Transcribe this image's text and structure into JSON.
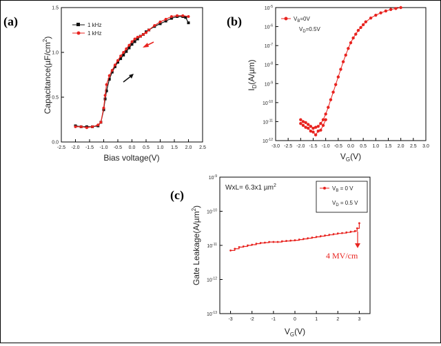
{
  "chart_data": [
    {
      "panel": "(a)",
      "type": "line",
      "xlabel": "Bias voltage(V)",
      "ylabel": "Capacitance(µF/cm²)",
      "ylabel_parts": {
        "main": "Capacitance(µF/cm",
        "sup": "2",
        "close": ")"
      },
      "xlim": [
        -2.5,
        2.5
      ],
      "ylim": [
        0.0,
        1.5
      ],
      "xticks": [
        "-2.5",
        "-2.0",
        "-1.5",
        "-1.0",
        "-0.5",
        "0.0",
        "0.5",
        "1.0",
        "1.5",
        "2.0",
        "2.5"
      ],
      "yticks": [
        "0.0",
        "0.5",
        "1.0",
        "1.5"
      ],
      "legend_position": "top-left",
      "series": [
        {
          "name": "1 kHz",
          "color": "#111111",
          "marker": "square",
          "x": [
            -2.0,
            -1.8,
            -1.6,
            -1.4,
            -1.2,
            -1.1,
            -1.0,
            -0.95,
            -0.9,
            -0.8,
            -0.7,
            -0.6,
            -0.5,
            -0.4,
            -0.3,
            -0.2,
            -0.1,
            0.0,
            0.1,
            0.2,
            0.3,
            0.4,
            0.5,
            0.6,
            0.8,
            1.0,
            1.2,
            1.4,
            1.6,
            1.8,
            1.9,
            2.0
          ],
          "y": [
            0.18,
            0.17,
            0.17,
            0.17,
            0.18,
            0.22,
            0.36,
            0.48,
            0.57,
            0.7,
            0.78,
            0.84,
            0.89,
            0.93,
            0.97,
            1.01,
            1.05,
            1.09,
            1.12,
            1.15,
            1.18,
            1.2,
            1.23,
            1.25,
            1.29,
            1.32,
            1.35,
            1.38,
            1.4,
            1.4,
            1.39,
            1.33
          ]
        },
        {
          "name": "1 kHz",
          "color": "#e8231f",
          "marker": "circle",
          "x": [
            2.0,
            1.8,
            1.6,
            1.4,
            1.2,
            1.0,
            0.8,
            0.6,
            0.5,
            0.4,
            0.3,
            0.2,
            0.1,
            0.0,
            -0.1,
            -0.2,
            -0.3,
            -0.4,
            -0.5,
            -0.6,
            -0.7,
            -0.8,
            -0.9,
            -0.95,
            -1.0,
            -1.1,
            -1.2,
            -1.4,
            -1.6,
            -1.8,
            -2.0
          ],
          "y": [
            1.4,
            1.41,
            1.41,
            1.4,
            1.37,
            1.34,
            1.3,
            1.25,
            1.22,
            1.2,
            1.18,
            1.17,
            1.15,
            1.12,
            1.08,
            1.04,
            1.0,
            0.96,
            0.91,
            0.86,
            0.8,
            0.74,
            0.64,
            0.52,
            0.38,
            0.22,
            0.19,
            0.17,
            0.16,
            0.17,
            0.17
          ]
        }
      ]
    },
    {
      "panel": "(b)",
      "type": "scatter",
      "yscale": "log",
      "xlabel": "V_G(V)",
      "xlabel_parts": {
        "main": "V",
        "sub": "G",
        "close": "(V)"
      },
      "ylabel": "I_D(A/µm)",
      "ylabel_parts": {
        "main": "I",
        "sub": "D",
        "close": "(A/µm)"
      },
      "xlim": [
        -3.0,
        3.0
      ],
      "ylim_exp": [
        -12,
        -5
      ],
      "xticks": [
        "-3.0",
        "-2.5",
        "-2.0",
        "-1.5",
        "-1.0",
        "-0.5",
        "0.0",
        "0.5",
        "1.0",
        "1.5",
        "2.0",
        "2.5",
        "3.0"
      ],
      "ytick_base": "10",
      "ytick_exps": [
        "-12",
        "-11",
        "-10",
        "-9",
        "-8",
        "-7",
        "-6",
        "-5"
      ],
      "legend_position": "top-left",
      "legend_lines": [
        {
          "main": "V",
          "sub": "B",
          "rest": "=0V"
        },
        {
          "main": "V",
          "sub": "D",
          "rest": "=0.5V"
        }
      ],
      "series": [
        {
          "color": "#e8231f",
          "x": [
            -2.0,
            -1.9,
            -1.8,
            -1.7,
            -1.6,
            -1.5,
            -1.4,
            -1.3,
            -1.2,
            -1.1,
            -1.0,
            -0.9,
            -0.8,
            -0.7,
            -0.6,
            -0.5,
            -0.4,
            -0.3,
            -0.2,
            -0.1,
            0.0,
            0.1,
            0.2,
            0.3,
            0.4,
            0.5,
            0.6,
            0.8,
            1.0,
            1.2,
            1.4,
            1.6,
            1.8,
            2.0
          ],
          "y_exp": [
            -10.9,
            -11.0,
            -11.05,
            -11.15,
            -11.25,
            -11.35,
            -11.3,
            -11.25,
            -11.1,
            -10.9,
            -10.6,
            -10.25,
            -9.85,
            -9.45,
            -9.05,
            -8.65,
            -8.25,
            -7.85,
            -7.5,
            -7.15,
            -6.85,
            -6.6,
            -6.4,
            -6.2,
            -6.05,
            -5.9,
            -5.75,
            -5.55,
            -5.4,
            -5.28,
            -5.18,
            -5.1,
            -5.05,
            -5.0
          ],
          "x_noise": [
            -2.0,
            -1.9,
            -1.8,
            -1.7,
            -1.6,
            -1.5,
            -1.4,
            -1.3,
            -1.2,
            -1.1,
            -1.0
          ],
          "y_noise_exp": [
            -11.1,
            -11.2,
            -11.3,
            -11.35,
            -11.5,
            -11.55,
            -11.7,
            -11.5,
            -11.45,
            -11.2,
            -10.9
          ]
        }
      ]
    },
    {
      "panel": "(c)",
      "type": "scatter",
      "yscale": "log",
      "xlabel": "V_G(V)",
      "xlabel_parts": {
        "main": "V",
        "sub": "G",
        "close": "(V)"
      },
      "ylabel": "Gate Leakage(A/µm²)",
      "ylabel_parts": {
        "main": "Gate Leakage(A/µm",
        "sup": "2",
        "close": ")"
      },
      "xlim": [
        -3.5,
        3.5
      ],
      "ylim_exp": [
        -13,
        -9
      ],
      "xticks": [
        "-3",
        "-2",
        "-1",
        "0",
        "1",
        "2",
        "3"
      ],
      "ytick_base": "10",
      "ytick_exps": [
        "-13",
        "-12",
        "-11",
        "-10",
        "-9"
      ],
      "annotation_area": {
        "main": "WxL= 6.3x1 µm",
        "sup": "2"
      },
      "annotation_field": "4 MV/cm",
      "legend_position": "top-right",
      "legend_lines": [
        {
          "main": "V",
          "sub": "B",
          "rest": " = 0 V"
        },
        {
          "main": "V",
          "sub": "D",
          "rest": " = 0.5 V"
        }
      ],
      "series": [
        {
          "color": "#e8231f",
          "x": [
            -3.0,
            -2.8,
            -2.6,
            -2.4,
            -2.2,
            -2.0,
            -1.8,
            -1.6,
            -1.4,
            -1.2,
            -1.0,
            -0.8,
            -0.6,
            -0.4,
            -0.2,
            0.0,
            0.2,
            0.4,
            0.6,
            0.8,
            1.0,
            1.2,
            1.4,
            1.6,
            1.8,
            2.0,
            2.2,
            2.4,
            2.6,
            2.8,
            2.9,
            3.0
          ],
          "y_exp": [
            -11.15,
            -11.1,
            -11.05,
            -11.03,
            -11.0,
            -10.98,
            -10.95,
            -10.93,
            -10.92,
            -10.9,
            -10.9,
            -10.9,
            -10.88,
            -10.87,
            -10.86,
            -10.85,
            -10.83,
            -10.81,
            -10.79,
            -10.77,
            -10.75,
            -10.73,
            -10.71,
            -10.69,
            -10.67,
            -10.65,
            -10.64,
            -10.62,
            -10.6,
            -10.58,
            -10.5,
            -10.35
          ]
        }
      ]
    }
  ]
}
